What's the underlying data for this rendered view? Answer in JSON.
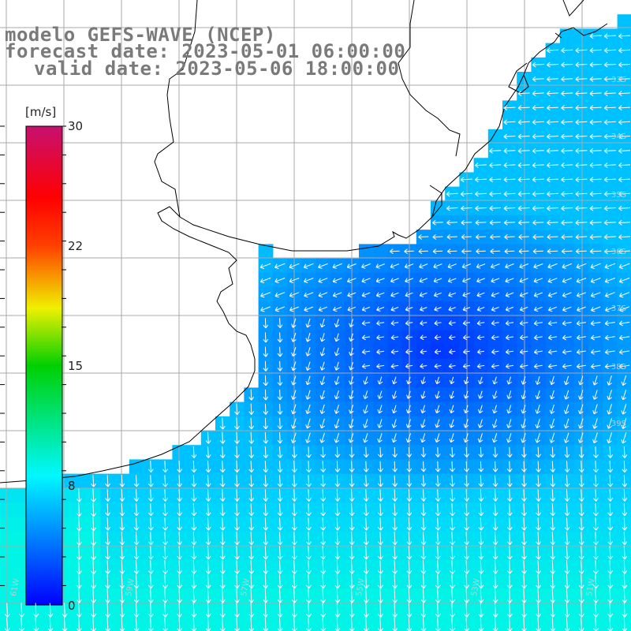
{
  "title": {
    "line1": "modelo GEFS-WAVE (NCEP)",
    "line2": "forecast date: 2023-05-01 06:00:00",
    "line3": "valid date: 2023-05-06 18:00:00"
  },
  "colorbar": {
    "unit": "[m/s]",
    "ticks": [
      "30",
      "22",
      "15",
      "8",
      "0"
    ],
    "tick_values": [
      30,
      22,
      15,
      8,
      0
    ]
  },
  "lat_labels": [
    "33S",
    "34S",
    "35S",
    "36S",
    "37S",
    "38S",
    "39S"
  ],
  "lon_labels": [
    "61W",
    "59W",
    "57W",
    "55W",
    "53W",
    "51W"
  ],
  "colors": {
    "land": "#ffffff",
    "grid": "#a9a9a9",
    "arrow": "#ffffff",
    "deep_blue": "#0020ff",
    "mid_blue": "#0070ff",
    "cyan": "#00e8ff"
  }
}
